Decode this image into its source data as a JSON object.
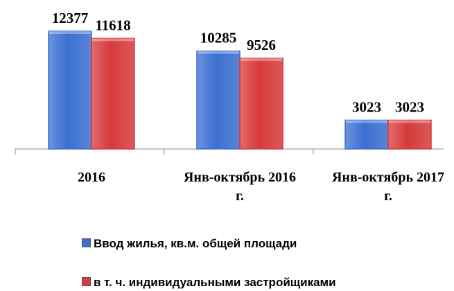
{
  "chart_data": {
    "type": "bar",
    "categories": [
      "2016",
      "Янв-октябрь 2016 г.",
      "Янв-октябрь 2017 г."
    ],
    "series": [
      {
        "name": "Ввод жилья, кв.м. общей площади",
        "color": "#3b6fd1",
        "values": [
          12377,
          10285,
          3023
        ]
      },
      {
        "name": "в т. ч. индивидуальными застройщиками",
        "color": "#d63a3a",
        "values": [
          11618,
          9526,
          3023
        ]
      }
    ],
    "ylim": [
      0,
      15650
    ]
  }
}
